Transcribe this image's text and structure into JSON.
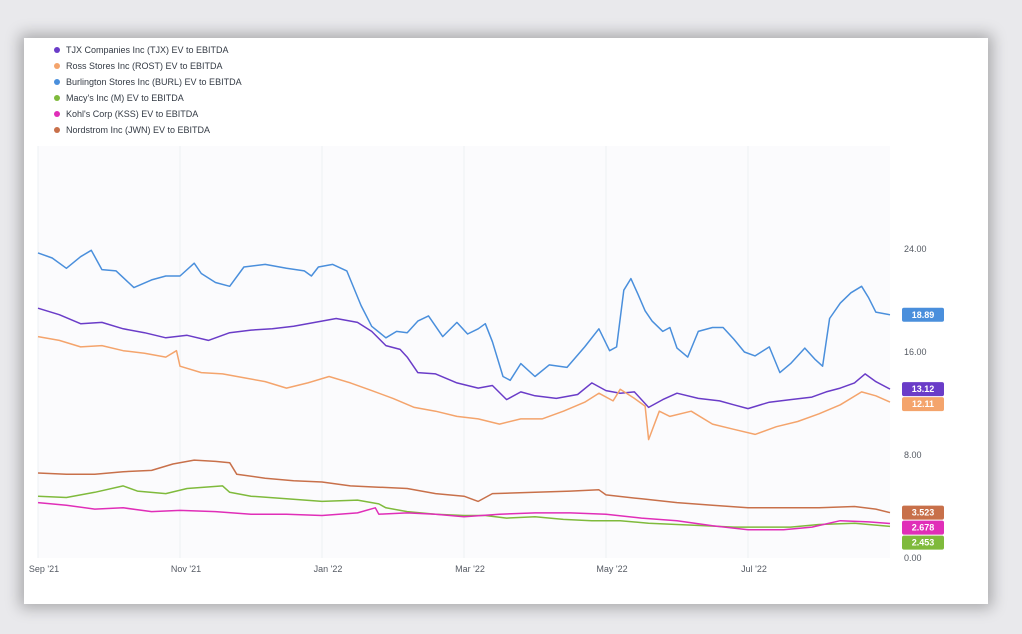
{
  "chart_data": {
    "type": "line",
    "title": "",
    "xlabel": "",
    "ylabel": "",
    "ylim": [
      0,
      32
    ],
    "y_ticks": [
      {
        "value": 24,
        "label": "24.00"
      },
      {
        "value": 16,
        "label": "16.00"
      },
      {
        "value": 8,
        "label": "8.00"
      },
      {
        "value": 0,
        "label": "0.00"
      }
    ],
    "x_domain": [
      0,
      12
    ],
    "x_ticks": [
      {
        "pos": 0,
        "label": "Sep '21"
      },
      {
        "pos": 2,
        "label": "Nov '21"
      },
      {
        "pos": 4,
        "label": "Jan '22"
      },
      {
        "pos": 6,
        "label": "Mar '22"
      },
      {
        "pos": 8,
        "label": "May '22"
      },
      {
        "pos": 10,
        "label": "Jul '22"
      }
    ],
    "series": [
      {
        "name": "TJX Companies Inc (TJX) EV to EBITDA",
        "color": "#6a3cc8",
        "last_label": "13.12",
        "points": [
          [
            0,
            19.4
          ],
          [
            0.3,
            18.9
          ],
          [
            0.6,
            18.2
          ],
          [
            0.9,
            18.3
          ],
          [
            1.2,
            17.8
          ],
          [
            1.5,
            17.5
          ],
          [
            1.8,
            17.1
          ],
          [
            2.1,
            17.3
          ],
          [
            2.4,
            16.9
          ],
          [
            2.7,
            17.5
          ],
          [
            3.0,
            17.7
          ],
          [
            3.3,
            17.8
          ],
          [
            3.6,
            18.0
          ],
          [
            3.9,
            18.3
          ],
          [
            4.2,
            18.6
          ],
          [
            4.5,
            18.3
          ],
          [
            4.7,
            17.6
          ],
          [
            4.9,
            16.5
          ],
          [
            5.1,
            16.2
          ],
          [
            5.2,
            15.6
          ],
          [
            5.35,
            14.4
          ],
          [
            5.6,
            14.3
          ],
          [
            5.9,
            13.6
          ],
          [
            6.2,
            13.2
          ],
          [
            6.4,
            13.4
          ],
          [
            6.6,
            12.3
          ],
          [
            6.8,
            12.9
          ],
          [
            7.0,
            12.6
          ],
          [
            7.3,
            12.4
          ],
          [
            7.6,
            12.7
          ],
          [
            7.8,
            13.6
          ],
          [
            8.0,
            13.0
          ],
          [
            8.2,
            12.8
          ],
          [
            8.4,
            12.9
          ],
          [
            8.6,
            11.7
          ],
          [
            8.8,
            12.3
          ],
          [
            9.0,
            12.8
          ],
          [
            9.3,
            12.4
          ],
          [
            9.6,
            12.2
          ],
          [
            9.8,
            11.9
          ],
          [
            10.0,
            11.6
          ],
          [
            10.3,
            12.1
          ],
          [
            10.6,
            12.3
          ],
          [
            10.9,
            12.5
          ],
          [
            11.1,
            12.9
          ],
          [
            11.3,
            13.2
          ],
          [
            11.5,
            13.6
          ],
          [
            11.65,
            14.3
          ],
          [
            11.8,
            13.7
          ],
          [
            12,
            13.12
          ]
        ]
      },
      {
        "name": "Ross Stores Inc (ROST) EV to EBITDA",
        "color": "#f4a46c",
        "last_label": "12.11",
        "points": [
          [
            0,
            17.2
          ],
          [
            0.3,
            16.9
          ],
          [
            0.6,
            16.4
          ],
          [
            0.9,
            16.5
          ],
          [
            1.2,
            16.1
          ],
          [
            1.5,
            15.9
          ],
          [
            1.8,
            15.6
          ],
          [
            1.95,
            16.1
          ],
          [
            2.0,
            14.9
          ],
          [
            2.3,
            14.4
          ],
          [
            2.6,
            14.3
          ],
          [
            2.9,
            14.0
          ],
          [
            3.2,
            13.7
          ],
          [
            3.5,
            13.2
          ],
          [
            3.8,
            13.6
          ],
          [
            4.1,
            14.1
          ],
          [
            4.4,
            13.6
          ],
          [
            4.7,
            13.0
          ],
          [
            5.0,
            12.4
          ],
          [
            5.3,
            11.7
          ],
          [
            5.6,
            11.4
          ],
          [
            5.9,
            11.0
          ],
          [
            6.2,
            10.8
          ],
          [
            6.5,
            10.4
          ],
          [
            6.8,
            10.8
          ],
          [
            7.1,
            10.8
          ],
          [
            7.4,
            11.4
          ],
          [
            7.7,
            12.1
          ],
          [
            7.9,
            12.8
          ],
          [
            8.1,
            12.2
          ],
          [
            8.2,
            13.1
          ],
          [
            8.4,
            12.4
          ],
          [
            8.55,
            11.8
          ],
          [
            8.6,
            9.2
          ],
          [
            8.75,
            11.4
          ],
          [
            8.9,
            11.0
          ],
          [
            9.2,
            11.4
          ],
          [
            9.5,
            10.4
          ],
          [
            9.8,
            10.0
          ],
          [
            10.1,
            9.6
          ],
          [
            10.4,
            10.2
          ],
          [
            10.7,
            10.6
          ],
          [
            11.0,
            11.2
          ],
          [
            11.3,
            11.9
          ],
          [
            11.6,
            12.9
          ],
          [
            11.8,
            12.6
          ],
          [
            12,
            12.11
          ]
        ]
      },
      {
        "name": "Burlington Stores Inc (BURL) EV to EBITDA",
        "color": "#4a8fdc",
        "last_label": "18.89",
        "points": [
          [
            0,
            23.7
          ],
          [
            0.2,
            23.3
          ],
          [
            0.4,
            22.5
          ],
          [
            0.6,
            23.4
          ],
          [
            0.75,
            23.9
          ],
          [
            0.9,
            22.4
          ],
          [
            1.1,
            22.3
          ],
          [
            1.35,
            21.0
          ],
          [
            1.6,
            21.6
          ],
          [
            1.8,
            21.9
          ],
          [
            2.0,
            21.9
          ],
          [
            2.2,
            22.9
          ],
          [
            2.3,
            22.1
          ],
          [
            2.5,
            21.4
          ],
          [
            2.7,
            21.1
          ],
          [
            2.9,
            22.6
          ],
          [
            3.2,
            22.8
          ],
          [
            3.5,
            22.5
          ],
          [
            3.75,
            22.3
          ],
          [
            3.85,
            21.9
          ],
          [
            3.95,
            22.6
          ],
          [
            4.15,
            22.8
          ],
          [
            4.35,
            22.3
          ],
          [
            4.55,
            19.6
          ],
          [
            4.7,
            18.0
          ],
          [
            4.9,
            17.1
          ],
          [
            5.05,
            17.6
          ],
          [
            5.2,
            17.5
          ],
          [
            5.35,
            18.4
          ],
          [
            5.5,
            18.8
          ],
          [
            5.7,
            17.2
          ],
          [
            5.9,
            18.3
          ],
          [
            6.05,
            17.4
          ],
          [
            6.2,
            17.8
          ],
          [
            6.3,
            18.2
          ],
          [
            6.4,
            16.8
          ],
          [
            6.55,
            14.1
          ],
          [
            6.65,
            13.8
          ],
          [
            6.8,
            15.1
          ],
          [
            7.0,
            14.1
          ],
          [
            7.2,
            15.0
          ],
          [
            7.45,
            14.8
          ],
          [
            7.7,
            16.4
          ],
          [
            7.9,
            17.8
          ],
          [
            8.05,
            16.1
          ],
          [
            8.15,
            16.4
          ],
          [
            8.25,
            20.8
          ],
          [
            8.35,
            21.7
          ],
          [
            8.45,
            20.5
          ],
          [
            8.55,
            19.2
          ],
          [
            8.65,
            18.4
          ],
          [
            8.8,
            17.6
          ],
          [
            8.9,
            17.9
          ],
          [
            9.0,
            16.3
          ],
          [
            9.15,
            15.6
          ],
          [
            9.3,
            17.6
          ],
          [
            9.5,
            17.9
          ],
          [
            9.65,
            17.9
          ],
          [
            9.8,
            17.0
          ],
          [
            9.95,
            16.0
          ],
          [
            10.1,
            15.7
          ],
          [
            10.3,
            16.4
          ],
          [
            10.45,
            14.4
          ],
          [
            10.6,
            15.1
          ],
          [
            10.8,
            16.3
          ],
          [
            10.95,
            15.4
          ],
          [
            11.05,
            14.9
          ],
          [
            11.15,
            18.6
          ],
          [
            11.3,
            19.8
          ],
          [
            11.45,
            20.6
          ],
          [
            11.6,
            21.1
          ],
          [
            11.7,
            20.2
          ],
          [
            11.8,
            19.1
          ],
          [
            12,
            18.89
          ]
        ]
      },
      {
        "name": "Macy's Inc (M) EV to EBITDA",
        "color": "#7fba3c",
        "last_label": "2.453",
        "points": [
          [
            0,
            4.8
          ],
          [
            0.4,
            4.7
          ],
          [
            0.8,
            5.1
          ],
          [
            1.2,
            5.6
          ],
          [
            1.4,
            5.2
          ],
          [
            1.8,
            5.0
          ],
          [
            2.1,
            5.4
          ],
          [
            2.6,
            5.6
          ],
          [
            2.7,
            5.1
          ],
          [
            3.0,
            4.8
          ],
          [
            3.5,
            4.6
          ],
          [
            4.0,
            4.4
          ],
          [
            4.5,
            4.5
          ],
          [
            4.8,
            4.2
          ],
          [
            4.9,
            3.9
          ],
          [
            5.2,
            3.6
          ],
          [
            5.6,
            3.4
          ],
          [
            6.0,
            3.3
          ],
          [
            6.3,
            3.3
          ],
          [
            6.6,
            3.1
          ],
          [
            7.0,
            3.2
          ],
          [
            7.4,
            3.0
          ],
          [
            7.8,
            2.9
          ],
          [
            8.2,
            2.9
          ],
          [
            8.6,
            2.7
          ],
          [
            9.0,
            2.6
          ],
          [
            9.4,
            2.5
          ],
          [
            9.8,
            2.4
          ],
          [
            10.2,
            2.4
          ],
          [
            10.6,
            2.4
          ],
          [
            11.0,
            2.6
          ],
          [
            11.5,
            2.7
          ],
          [
            12,
            2.453
          ]
        ]
      },
      {
        "name": "Kohl's Corp (KSS) EV to EBITDA",
        "color": "#e02eb8",
        "last_label": "2.678",
        "points": [
          [
            0,
            4.3
          ],
          [
            0.4,
            4.1
          ],
          [
            0.8,
            3.8
          ],
          [
            1.2,
            3.9
          ],
          [
            1.6,
            3.6
          ],
          [
            2.0,
            3.7
          ],
          [
            2.5,
            3.6
          ],
          [
            3.0,
            3.4
          ],
          [
            3.5,
            3.4
          ],
          [
            4.0,
            3.3
          ],
          [
            4.5,
            3.5
          ],
          [
            4.75,
            3.9
          ],
          [
            4.8,
            3.4
          ],
          [
            5.2,
            3.5
          ],
          [
            5.6,
            3.4
          ],
          [
            6.0,
            3.2
          ],
          [
            6.5,
            3.4
          ],
          [
            7.0,
            3.5
          ],
          [
            7.5,
            3.5
          ],
          [
            8.0,
            3.4
          ],
          [
            8.5,
            3.1
          ],
          [
            9.0,
            2.9
          ],
          [
            9.5,
            2.5
          ],
          [
            10.0,
            2.2
          ],
          [
            10.5,
            2.2
          ],
          [
            10.9,
            2.4
          ],
          [
            11.3,
            2.9
          ],
          [
            11.7,
            2.8
          ],
          [
            12,
            2.678
          ]
        ]
      },
      {
        "name": "Nordstrom Inc (JWN) EV to EBITDA",
        "color": "#c8704a",
        "last_label": "3.523",
        "points": [
          [
            0,
            6.6
          ],
          [
            0.4,
            6.5
          ],
          [
            0.8,
            6.5
          ],
          [
            1.2,
            6.7
          ],
          [
            1.6,
            6.8
          ],
          [
            1.9,
            7.3
          ],
          [
            2.2,
            7.6
          ],
          [
            2.5,
            7.5
          ],
          [
            2.7,
            7.4
          ],
          [
            2.8,
            6.5
          ],
          [
            3.2,
            6.2
          ],
          [
            3.6,
            6.0
          ],
          [
            4.0,
            5.9
          ],
          [
            4.4,
            5.6
          ],
          [
            4.8,
            5.5
          ],
          [
            5.2,
            5.4
          ],
          [
            5.6,
            5.0
          ],
          [
            6.0,
            4.8
          ],
          [
            6.2,
            4.4
          ],
          [
            6.4,
            5.0
          ],
          [
            7.0,
            5.1
          ],
          [
            7.5,
            5.2
          ],
          [
            7.9,
            5.3
          ],
          [
            8.0,
            4.9
          ],
          [
            8.5,
            4.6
          ],
          [
            9.0,
            4.3
          ],
          [
            9.5,
            4.1
          ],
          [
            10.0,
            3.9
          ],
          [
            10.5,
            3.9
          ],
          [
            11.0,
            3.9
          ],
          [
            11.5,
            4.0
          ],
          [
            11.8,
            3.8
          ],
          [
            12,
            3.523
          ]
        ]
      }
    ]
  }
}
